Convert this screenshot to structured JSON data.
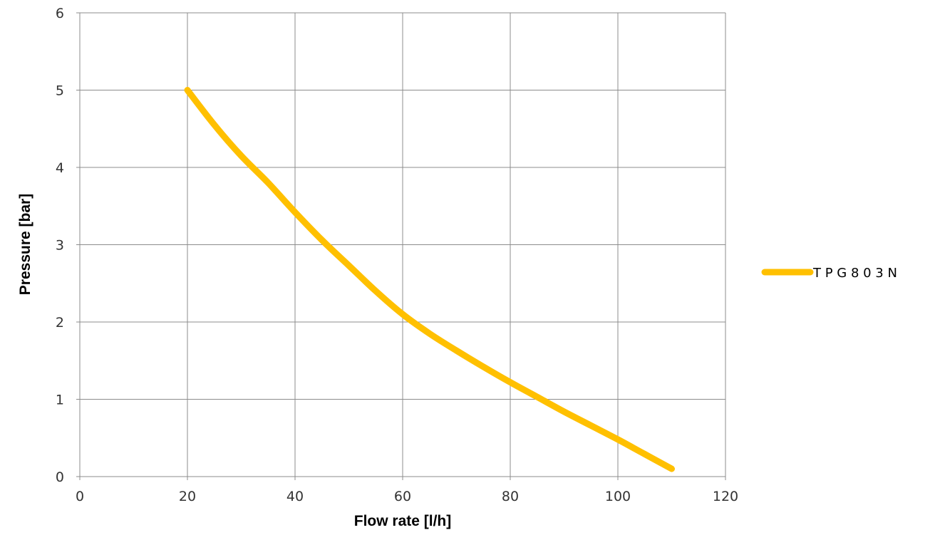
{
  "chart_data": {
    "type": "line",
    "title": "",
    "xlabel": "Flow rate [l/h]",
    "ylabel": "Pressure [bar]",
    "xlim": [
      0,
      120
    ],
    "ylim": [
      0,
      6
    ],
    "xticks": [
      "0",
      "20",
      "40",
      "60",
      "80",
      "100",
      "120"
    ],
    "yticks": [
      "0",
      "1",
      "2",
      "3",
      "4",
      "5",
      "6"
    ],
    "grid": true,
    "legend_position": "right",
    "series": [
      {
        "name": "T P G 8 0 3 N",
        "color": "#FFC000",
        "x": [
          20,
          25,
          30,
          35,
          40,
          45,
          50,
          55,
          60,
          65,
          70,
          75,
          80,
          85,
          90,
          95,
          100,
          105,
          110
        ],
        "y": [
          5.0,
          4.55,
          4.15,
          3.8,
          3.42,
          3.06,
          2.73,
          2.4,
          2.1,
          1.85,
          1.63,
          1.42,
          1.22,
          1.03,
          0.84,
          0.66,
          0.48,
          0.29,
          0.1
        ]
      }
    ]
  }
}
